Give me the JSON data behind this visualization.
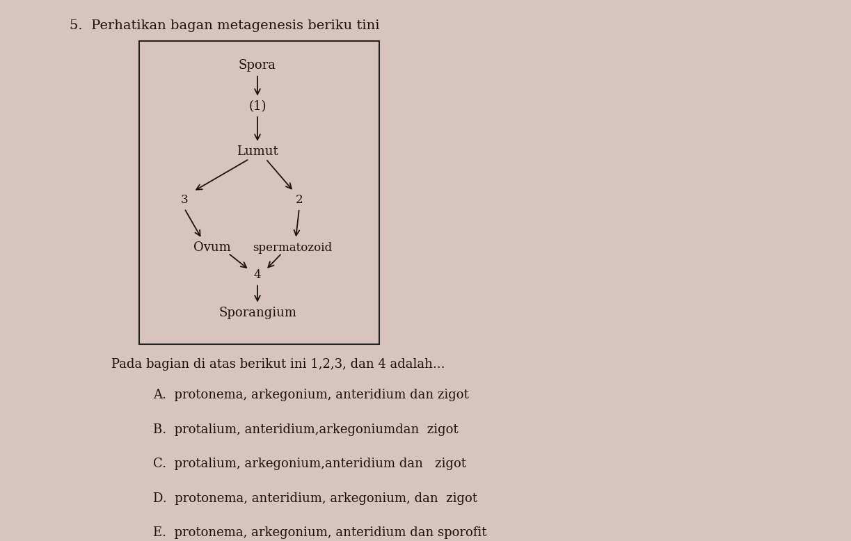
{
  "title": "5.  Perhatikan bagan metagenesis beriku tini",
  "background_color": "#d8c4bf",
  "box_edge_color": "#222222",
  "text_color": "#1a1010",
  "font_size_title": 14,
  "font_size_node": 12,
  "font_size_number": 11,
  "font_size_question": 13,
  "font_size_option": 13,
  "question_text": "Pada bagian di atas berikut ini 1,2,3, dan 4 adalah...",
  "options": [
    "A.  protonema, arkegonium, anteridium dan zigot",
    "B.  protalium, anteridium,arkegoniumdan  zigot",
    "C.  protalium, arkegonium,anteridium dan   zigot",
    "D.  protonema, anteridium, arkegonium, dan  zigot",
    "E.  protonema, arkegonium, anteridium dan sporofit"
  ]
}
